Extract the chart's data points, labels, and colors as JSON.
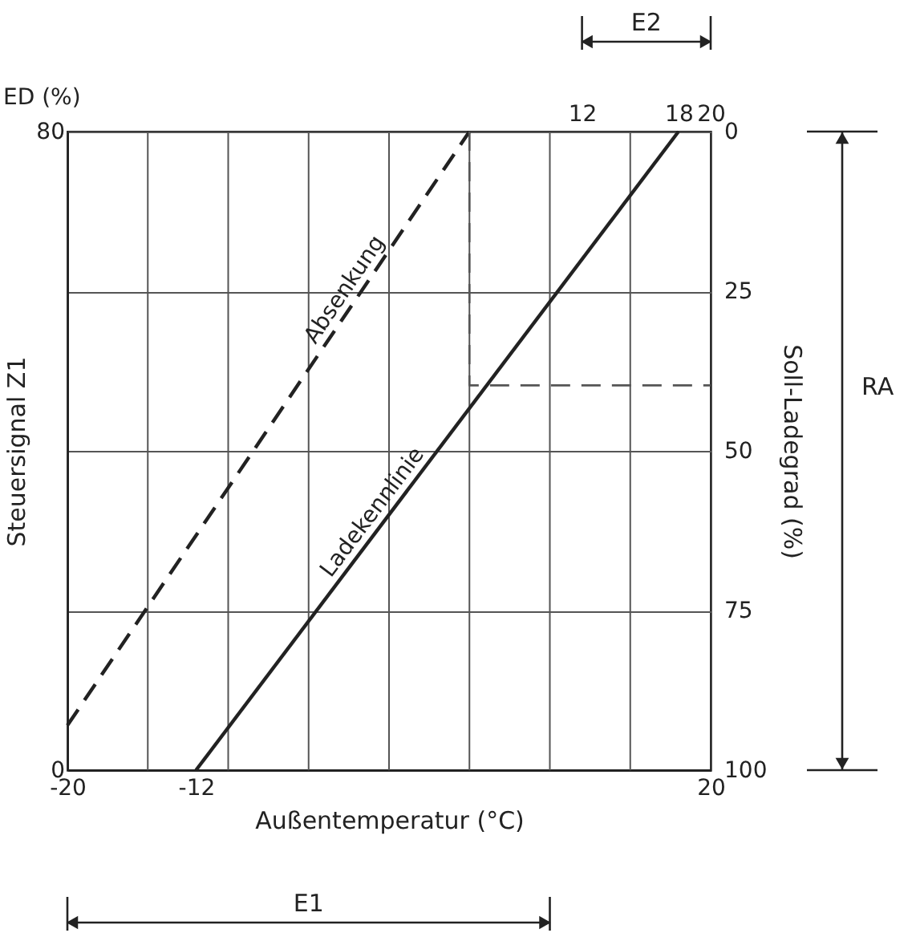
{
  "chart_data": {
    "type": "line",
    "xlabel": "Außentemperatur (°C)",
    "ylabel": "Steuersignal Z1",
    "y2label": "Soll-Ladegrad (%)",
    "xlim": [
      -20,
      20
    ],
    "ylim": [
      0,
      80
    ],
    "y2lim": [
      100,
      0
    ],
    "x2lim": [
      -20,
      20
    ],
    "xticks": [
      -12,
      -20,
      20,
      {
        "value": -15,
        "label": null
      },
      {
        "value": -10,
        "label": null
      },
      {
        "value": -5,
        "label": null
      },
      {
        "value": 0,
        "label": null
      },
      {
        "value": 5,
        "label": null
      },
      {
        "value": 10,
        "label": null
      },
      {
        "value": 15,
        "label": null
      }
    ],
    "yticks": [
      0,
      {
        "value": 20,
        "label": null
      },
      {
        "value": 40,
        "label": null
      },
      {
        "value": 60,
        "label": null
      },
      80
    ],
    "y2ticks": [
      0,
      25,
      50,
      75,
      100
    ],
    "x2ticks": [
      12,
      18,
      20
    ],
    "series": [
      {
        "name": "Absenkung",
        "color": "#222222",
        "line_style": "dashed",
        "x": [
          -20,
          5
        ],
        "values": [
          5.6,
          80
        ]
      },
      {
        "name": "Ladekennlinie",
        "color": "#222222",
        "line_style": "solid",
        "x": [
          -12,
          18
        ],
        "values": [
          0,
          80
        ]
      },
      {
        "color": "#555555",
        "line_style": "dashed",
        "x": [
          5,
          5,
          20
        ],
        "values": [
          80,
          48.2,
          48.2
        ]
      }
    ],
    "annotations": [
      "ED (%)",
      "E1",
      "E2",
      "RA"
    ],
    "grid": true,
    "marker": "none"
  }
}
